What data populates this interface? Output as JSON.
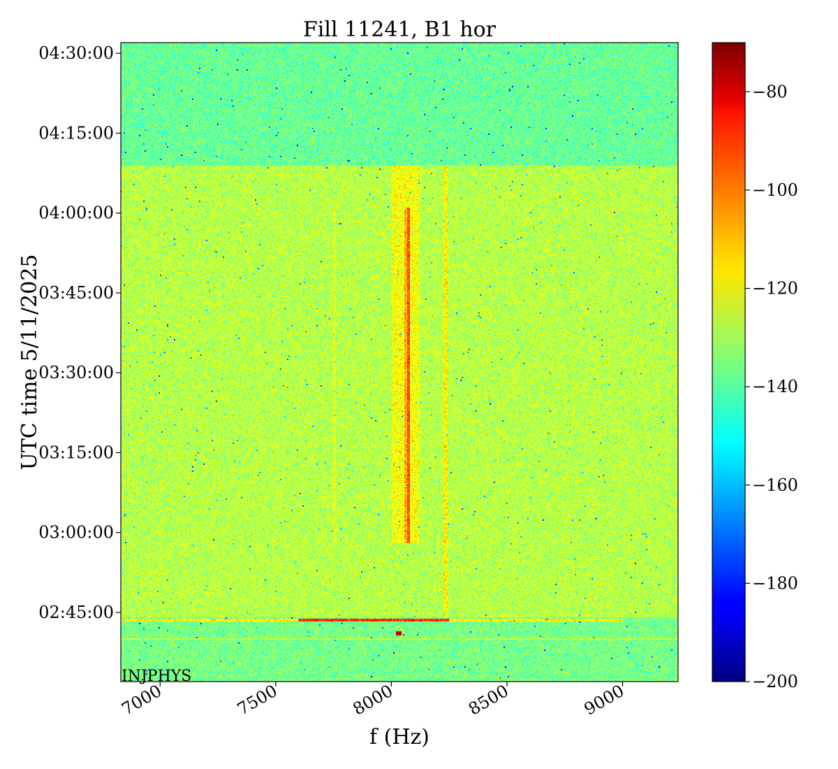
{
  "chart_data": {
    "type": "heatmap",
    "title": "Fill 11241, B1 hor",
    "xlabel": "f (Hz)",
    "ylabel": "UTC time 5/11/2025",
    "xlim": [
      6830,
      9240
    ],
    "x_ticks": [
      7000,
      7500,
      8000,
      8500,
      9000
    ],
    "x_tick_labels": [
      "7000",
      "7500",
      "8000",
      "8500",
      "9000"
    ],
    "y_range": [
      "02:32:00",
      "04:32:00"
    ],
    "y_ticks": [
      "02:45:00",
      "03:00:00",
      "03:15:00",
      "03:30:00",
      "03:45:00",
      "04:00:00",
      "04:15:00",
      "04:30:00"
    ],
    "colorbar": {
      "colormap": "jet",
      "range": [
        -200,
        -70
      ],
      "ticks": [
        -80,
        -100,
        -120,
        -140,
        -160,
        -180,
        -200
      ],
      "tick_labels": [
        "−80",
        "−100",
        "−120",
        "−140",
        "−160",
        "−180",
        "−200"
      ]
    },
    "annotation": "INJPHYS",
    "background_level": {
      "before_02_44": -136,
      "02_44_to_04_09": -128,
      "after_04_09": -138
    },
    "features": [
      {
        "type": "vertical-line",
        "f": 8075,
        "t_start": "02:58:00",
        "t_end": "04:01:00",
        "level": -96
      },
      {
        "type": "vertical-line",
        "f": 8065,
        "t_start": "02:58:00",
        "t_end": "04:01:00",
        "level": -108
      },
      {
        "type": "vertical-band",
        "f_range": [
          8000,
          8120
        ],
        "t_start": "02:58:00",
        "t_end": "04:09:00",
        "level": -120
      },
      {
        "type": "vertical-line",
        "f": 8235,
        "t_start": "02:44:00",
        "t_end": "04:09:00",
        "level": -118
      },
      {
        "type": "vertical-line",
        "f": 7755,
        "t_start": "02:58:00",
        "t_end": "04:01:00",
        "level": -122
      },
      {
        "type": "horizontal-line",
        "t": "02:43:30",
        "f_range": [
          7600,
          8250
        ],
        "level": -92
      },
      {
        "type": "horizontal-line",
        "t": "02:43:30",
        "f_range": [
          6830,
          9000
        ],
        "level": -118
      },
      {
        "type": "horizontal-line",
        "t": "02:40:00",
        "f_range": [
          6830,
          9240
        ],
        "level": -126
      },
      {
        "type": "spot",
        "f": 8030,
        "t": "02:41:00",
        "level": -80
      }
    ]
  }
}
